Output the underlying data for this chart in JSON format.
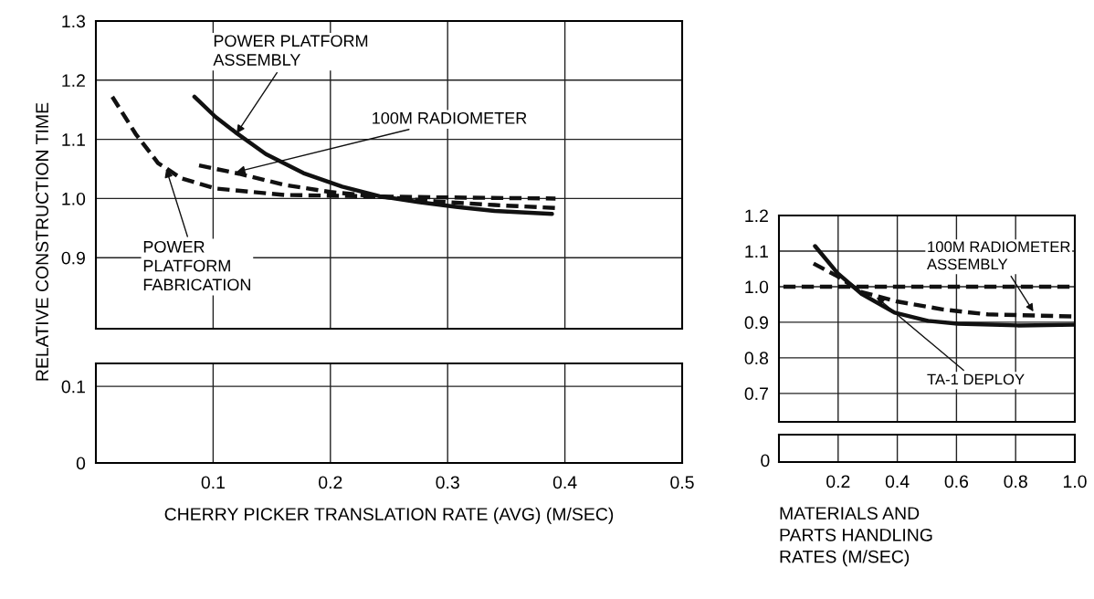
{
  "chart_data": [
    {
      "type": "line",
      "ylabel": "RELATIVE CONSTRUCTION TIME",
      "xlim": [
        0,
        0.5
      ],
      "xticks": [
        0.1,
        0.2,
        0.3,
        0.4,
        0.5
      ],
      "ylim": [
        0.78,
        1.3
      ],
      "yticks": [
        0.9,
        {
          "value": 1.0,
          "label": "1.0"
        },
        1.1,
        1.2,
        1.3
      ],
      "tick_labels": "y",
      "grid": true,
      "legend": false,
      "series": [
        {
          "color": "#111111",
          "line_style": "dashed",
          "x": [
            0.014,
            0.034,
            0.053,
            0.073,
            0.102,
            0.161,
            0.226,
            0.291,
            0.392
          ],
          "values": [
            1.172,
            1.109,
            1.06,
            1.034,
            1.017,
            1.006,
            1.004,
            1.002,
            1.0
          ]
        },
        {
          "color": "#111111",
          "line_style": "solid",
          "x": [
            0.084,
            0.102,
            0.119,
            0.145,
            0.177,
            0.21,
            0.242,
            0.275,
            0.307,
            0.34,
            0.389
          ],
          "values": [
            1.172,
            1.138,
            1.112,
            1.075,
            1.043,
            1.02,
            1.004,
            0.994,
            0.986,
            0.979,
            0.974
          ]
        },
        {
          "color": "#111111",
          "line_style": "dashed",
          "x": [
            0.088,
            0.122,
            0.161,
            0.2,
            0.242,
            0.291,
            0.34,
            0.392
          ],
          "values": [
            1.056,
            1.042,
            1.023,
            1.011,
            1.003,
            0.995,
            0.989,
            0.984
          ]
        }
      ],
      "annotations": [
        {
          "text": "POWER PLATFORM\nASSEMBLY",
          "x": 0.12,
          "y": 1.11
        },
        {
          "text": "100M RADIOMETER",
          "x": 0.12,
          "y": 1.045
        },
        {
          "text": "POWER\nPLATFORM\nFABRICATION",
          "x": 0.06,
          "y": 1.05
        }
      ]
    },
    {
      "type": "line",
      "xlabel": "CHERRY PICKER TRANSLATION RATE (AVG) (M/SEC)",
      "xlim": [
        0,
        0.5
      ],
      "xticks": [
        0.1,
        0.2,
        0.3,
        0.4,
        0.5
      ],
      "ylim": [
        0,
        0.13
      ],
      "yticks": [
        0,
        0.1
      ],
      "grid": true,
      "legend": false
    },
    {
      "type": "line",
      "xlim": [
        0,
        1.0
      ],
      "xticks": [
        0.2,
        0.4,
        0.6,
        0.8,
        {
          "value": 1.0,
          "label": "1.0"
        }
      ],
      "ylim": [
        0.62,
        1.2
      ],
      "yticks": [
        0.7,
        0.8,
        0.9,
        {
          "value": 1.0,
          "label": "1.0"
        },
        1.1,
        1.2
      ],
      "xlabel": "MATERIALS AND\nPARTS HANDLING\nRATES (M/SEC)",
      "grid": true,
      "legend": false,
      "series": [
        {
          "color": "#111111",
          "line_style": "solid",
          "x": [
            0.122,
            0.198,
            0.279,
            0.391,
            0.503,
            0.604,
            0.807,
            1.0
          ],
          "values": [
            1.114,
            1.038,
            0.98,
            0.927,
            0.904,
            0.896,
            0.891,
            0.893
          ]
        },
        {
          "color": "#111111",
          "line_style": "dashed",
          "x": [
            0.117,
            0.198,
            0.279,
            0.401,
            0.553,
            0.706,
            1.0
          ],
          "values": [
            1.065,
            1.029,
            0.985,
            0.958,
            0.936,
            0.922,
            0.916
          ]
        },
        {
          "color": "#111111",
          "line_style": "dashed",
          "x": [
            0.015,
            1.0
          ],
          "values": [
            1.0,
            1.0
          ]
        }
      ],
      "annotations": [
        {
          "text": "100M RADIOMETER\nASSEMBLY",
          "x": 0.86,
          "y": 0.93
        },
        {
          "text": "TA-1 DEPLOY",
          "x": 0.33,
          "y": 0.97
        }
      ]
    },
    {
      "type": "other",
      "annotations": [
        "0"
      ]
    }
  ]
}
